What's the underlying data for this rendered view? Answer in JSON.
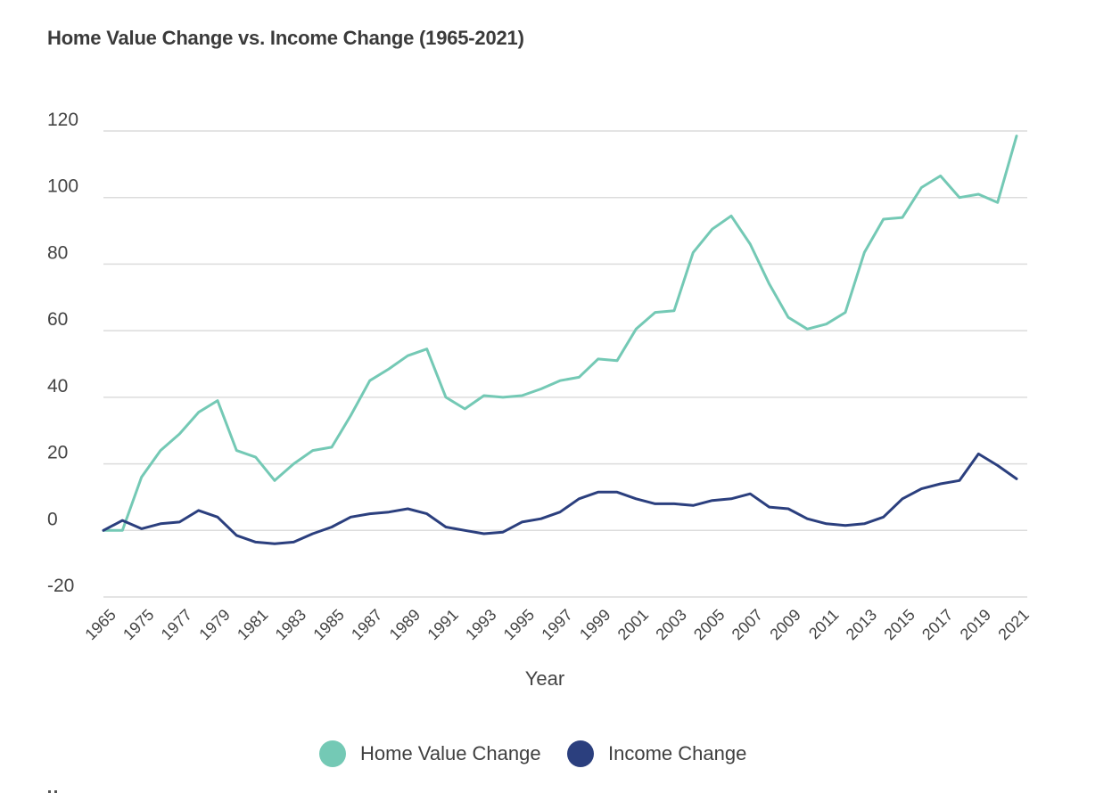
{
  "chart_data": {
    "type": "line",
    "title": "Home Value Change vs. Income Change (1965-2021)",
    "xlabel": "Year",
    "ylabel": "",
    "ylim": [
      -20,
      120
    ],
    "yticks": [
      -20,
      0,
      20,
      40,
      60,
      80,
      100,
      120
    ],
    "grid": true,
    "legend_position": "bottom",
    "x": [
      "1965",
      "1974",
      "1975",
      "1976",
      "1977",
      "1978",
      "1979",
      "1980",
      "1981",
      "1982",
      "1983",
      "1984",
      "1985",
      "1986",
      "1987",
      "1988",
      "1989",
      "1990",
      "1991",
      "1992",
      "1993",
      "1994",
      "1995",
      "1996",
      "1997",
      "1998",
      "1999",
      "2000",
      "2001",
      "2002",
      "2003",
      "2004",
      "2005",
      "2006",
      "2007",
      "2008",
      "2009",
      "2010",
      "2011",
      "2012",
      "2013",
      "2014",
      "2015",
      "2016",
      "2017",
      "2018",
      "2019",
      "2020",
      "2021"
    ],
    "x_tick_labels": [
      "1965",
      "1975",
      "1977",
      "1979",
      "1981",
      "1983",
      "1985",
      "1987",
      "1989",
      "1991",
      "1993",
      "1995",
      "1997",
      "1999",
      "2001",
      "2003",
      "2005",
      "2007",
      "2009",
      "2011",
      "2013",
      "2015",
      "2017",
      "2019",
      "2021"
    ],
    "series": [
      {
        "name": "Home Value Change",
        "color": "#74c9b5",
        "values": [
          0,
          0,
          16,
          24,
          29,
          35.5,
          39,
          24,
          22,
          15,
          20,
          24,
          25,
          34.5,
          45,
          48.5,
          52.5,
          54.5,
          40,
          36.5,
          40.5,
          40,
          40.5,
          42.5,
          45,
          46,
          51.5,
          51,
          60.5,
          65.5,
          66,
          83.5,
          90.5,
          94.5,
          86,
          74,
          64,
          60.5,
          62,
          65.5,
          83.5,
          93.5,
          94,
          103,
          106.5,
          100,
          101,
          98.5,
          118.5
        ]
      },
      {
        "name": "Income Change",
        "color": "#2b3f7e",
        "values": [
          0,
          3,
          0.5,
          2,
          2.5,
          6,
          4,
          -1.5,
          -3.5,
          -4,
          -3.5,
          -1,
          1,
          4,
          5,
          5.5,
          6.5,
          5,
          1,
          0,
          -1,
          -0.5,
          2.5,
          3.5,
          5.5,
          9.5,
          11.5,
          11.5,
          9.5,
          8,
          8,
          7.5,
          9,
          9.5,
          11,
          7,
          6.5,
          3.5,
          2,
          1.5,
          2,
          4,
          9.5,
          12.5,
          14,
          15,
          23,
          19.5,
          15.5
        ]
      }
    ]
  }
}
